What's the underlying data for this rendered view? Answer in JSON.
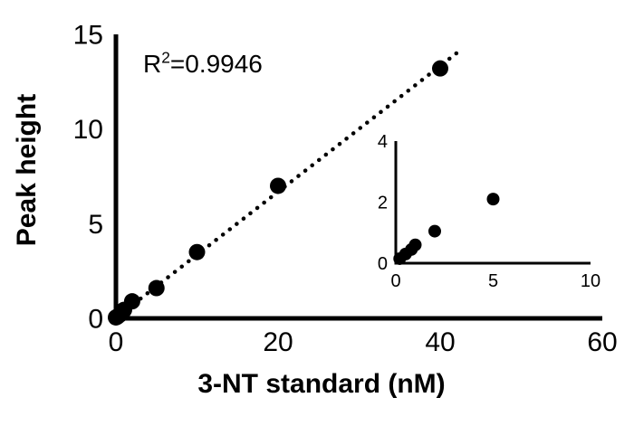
{
  "chart_data": {
    "type": "scatter",
    "title": "",
    "xlabel": "3-NT standard (nM)",
    "ylabel": "Peak height",
    "annotation": {
      "text": "R²=0.9946",
      "base": "R",
      "sup": "2",
      "rest": "=0.9946"
    },
    "xlim": [
      0,
      60
    ],
    "ylim": [
      0,
      15
    ],
    "xticks": [
      0,
      20,
      40,
      60
    ],
    "yticks": [
      0,
      5,
      10,
      15
    ],
    "grid": false,
    "legend": "none",
    "marker_color": "#000000",
    "background": "#ffffff",
    "points": [
      [
        0,
        0.05
      ],
      [
        0.2,
        0.1
      ],
      [
        0.5,
        0.2
      ],
      [
        0.8,
        0.3
      ],
      [
        1,
        0.45
      ],
      [
        2,
        0.9
      ],
      [
        5,
        1.6
      ],
      [
        10,
        3.5
      ],
      [
        20,
        7.0
      ],
      [
        40,
        13.2
      ]
    ],
    "trendline": {
      "style": "dotted",
      "x1": 0.5,
      "y1": 0.2,
      "x2": 42,
      "y2": 14.0
    },
    "inset": {
      "type": "scatter",
      "xlim": [
        0,
        10
      ],
      "ylim": [
        0,
        4
      ],
      "xticks": [
        0,
        5,
        10
      ],
      "yticks": [
        0,
        2,
        4
      ],
      "points": [
        [
          0.2,
          0.15
        ],
        [
          0.5,
          0.3
        ],
        [
          0.8,
          0.45
        ],
        [
          1,
          0.6
        ],
        [
          2,
          1.05
        ],
        [
          5,
          2.1
        ]
      ]
    }
  }
}
